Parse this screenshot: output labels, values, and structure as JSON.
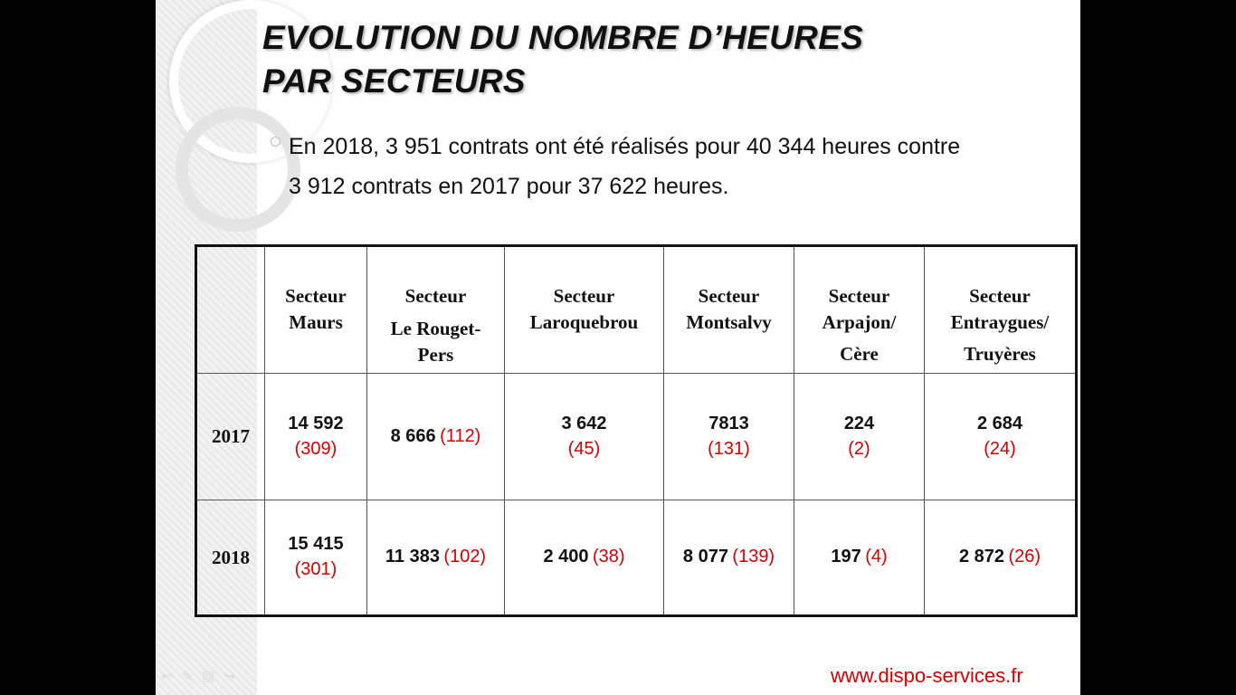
{
  "title": {
    "line1": "EVOLUTION DU NOMBRE D’HEURES",
    "line2": "PAR SECTEURS"
  },
  "bullet": {
    "line1": "En 2018,  3 951 contrats ont été réalisés pour 40 344 heures contre",
    "line2": "3 912  contrats en 2017 pour  37 622 heures."
  },
  "table": {
    "headers": [
      {
        "lines": [
          "Secteur",
          "Maurs",
          ""
        ]
      },
      {
        "lines": [
          "Secteur",
          "Le Rouget-",
          "Pers"
        ]
      },
      {
        "lines": [
          "Secteur",
          "Laroquebrou",
          ""
        ]
      },
      {
        "lines": [
          "Secteur",
          "Montsalvy",
          ""
        ]
      },
      {
        "lines": [
          "Secteur",
          "Arpajon/",
          "Cère"
        ]
      },
      {
        "lines": [
          "Secteur",
          "Entraygues/",
          "Truyères"
        ]
      }
    ],
    "rows": [
      {
        "year": "2017",
        "cells": [
          {
            "hours": "14 592",
            "contracts": "(309)",
            "stacked": true
          },
          {
            "hours": "8 666",
            "contracts": "(112)",
            "stacked": false
          },
          {
            "hours": "3 642",
            "contracts": "(45)",
            "stacked": true
          },
          {
            "hours": "7813",
            "contracts": "(131)",
            "stacked": true
          },
          {
            "hours": "224",
            "contracts": "(2)",
            "stacked": true
          },
          {
            "hours": "2 684",
            "contracts": "(24)",
            "stacked": true
          }
        ]
      },
      {
        "year": "2018",
        "cells": [
          {
            "hours": "15 415",
            "contracts": "(301)",
            "stacked": true
          },
          {
            "hours": "11 383",
            "contracts": "(102)",
            "stacked": false
          },
          {
            "hours": "2 400",
            "contracts": "(38)",
            "stacked": false
          },
          {
            "hours": "8 077",
            "contracts": "(139)",
            "stacked": false
          },
          {
            "hours": "197",
            "contracts": "(4)",
            "stacked": false
          },
          {
            "hours": "2 872",
            "contracts": "(26)",
            "stacked": false
          }
        ]
      }
    ]
  },
  "footer": {
    "website": "www.dispo-services.fr"
  },
  "colors": {
    "accent_red": "#d40000",
    "background": "#000000",
    "slide": "#ffffff"
  }
}
